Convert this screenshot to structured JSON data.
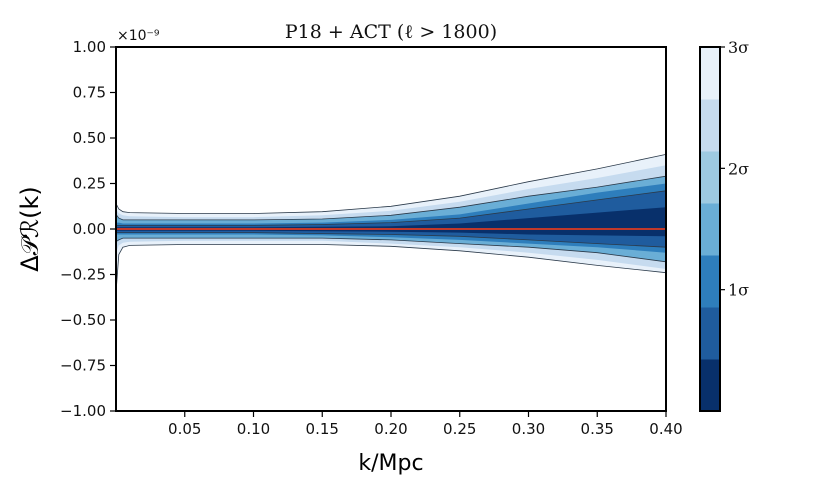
{
  "chart_data": {
    "type": "area",
    "title": "P18 + ACT (ℓ > 1800)",
    "xlabel": "k/Mpc",
    "ylabel": "Δ𝒫ℛ(k)",
    "y_scale_label": "×10⁻⁹",
    "xlim": [
      0.0,
      0.4
    ],
    "ylim": [
      -1.0,
      1.0
    ],
    "x_ticks": [
      "0.05",
      "0.10",
      "0.15",
      "0.20",
      "0.25",
      "0.30",
      "0.35",
      "0.40"
    ],
    "y_ticks": [
      "1.00",
      "0.75",
      "0.50",
      "0.25",
      "0.00",
      "−0.25",
      "−0.50",
      "−0.75",
      "−1.00"
    ],
    "x_tick_values": [
      0.05,
      0.1,
      0.15,
      0.2,
      0.25,
      0.3,
      0.35,
      0.4
    ],
    "y_tick_values": [
      1.0,
      0.75,
      0.5,
      0.25,
      0.0,
      -0.25,
      -0.5,
      -0.75,
      -1.0
    ],
    "x": [
      0.0,
      0.002,
      0.005,
      0.01,
      0.05,
      0.1,
      0.15,
      0.2,
      0.25,
      0.3,
      0.35,
      0.4
    ],
    "bands": [
      {
        "level": "0.5σ",
        "color": "#08306b",
        "upper": [
          0.01,
          0.01,
          0.01,
          0.01,
          0.01,
          0.01,
          0.012,
          0.015,
          0.03,
          0.06,
          0.09,
          0.12
        ],
        "lower": [
          -0.01,
          -0.01,
          -0.01,
          -0.01,
          -0.01,
          -0.01,
          -0.012,
          -0.015,
          -0.02,
          -0.03,
          -0.035,
          -0.04
        ]
      },
      {
        "level": "1σ",
        "color": "#1f5c9e",
        "upper": [
          0.02,
          0.02,
          0.02,
          0.02,
          0.02,
          0.02,
          0.025,
          0.035,
          0.06,
          0.11,
          0.16,
          0.21
        ],
        "lower": [
          -0.02,
          -0.02,
          -0.02,
          -0.02,
          -0.02,
          -0.02,
          -0.025,
          -0.03,
          -0.04,
          -0.06,
          -0.08,
          -0.1
        ]
      },
      {
        "level": "1.5σ",
        "color": "#2e7ebc",
        "upper": [
          0.035,
          0.035,
          0.03,
          0.03,
          0.03,
          0.03,
          0.035,
          0.05,
          0.08,
          0.14,
          0.2,
          0.25
        ],
        "lower": [
          -0.03,
          -0.03,
          -0.03,
          -0.03,
          -0.03,
          -0.03,
          -0.035,
          -0.045,
          -0.06,
          -0.08,
          -0.1,
          -0.13
        ]
      },
      {
        "level": "2σ",
        "color": "#6aaed6",
        "upper": [
          0.08,
          0.06,
          0.05,
          0.05,
          0.05,
          0.05,
          0.055,
          0.075,
          0.12,
          0.18,
          0.23,
          0.29
        ],
        "lower": [
          -0.07,
          -0.06,
          -0.05,
          -0.05,
          -0.05,
          -0.05,
          -0.05,
          -0.06,
          -0.08,
          -0.1,
          -0.13,
          -0.18
        ]
      },
      {
        "level": "2.5σ",
        "color": "#c6dbef",
        "upper": [
          0.11,
          0.085,
          0.075,
          0.07,
          0.065,
          0.065,
          0.075,
          0.1,
          0.15,
          0.22,
          0.28,
          0.35
        ],
        "lower": [
          -0.13,
          -0.09,
          -0.075,
          -0.07,
          -0.065,
          -0.065,
          -0.065,
          -0.08,
          -0.1,
          -0.13,
          -0.17,
          -0.22
        ]
      },
      {
        "level": "3σ",
        "color": "#e8f1fa",
        "upper": [
          0.14,
          0.11,
          0.095,
          0.09,
          0.085,
          0.085,
          0.095,
          0.125,
          0.18,
          0.26,
          0.33,
          0.41
        ],
        "lower": [
          -0.35,
          -0.14,
          -0.1,
          -0.09,
          -0.085,
          -0.085,
          -0.085,
          -0.095,
          -0.12,
          -0.155,
          -0.2,
          -0.24
        ]
      }
    ],
    "median_line": {
      "color": "#c0392b",
      "y": [
        0.0,
        0.0,
        0.0,
        0.0,
        0.0,
        0.0,
        0.0,
        0.0,
        0.0,
        0.0,
        0.0,
        0.0
      ]
    },
    "colorbar": {
      "colors": [
        "#08306b",
        "#1f5c9e",
        "#2e7ebc",
        "#6aaed6",
        "#9ecae1",
        "#c6dbef",
        "#e8f1fa"
      ],
      "ticks": [
        {
          "label": "3σ",
          "value": 3
        },
        {
          "label": "2σ",
          "value": 2
        },
        {
          "label": "1σ",
          "value": 1
        }
      ],
      "range": [
        0,
        3
      ]
    }
  }
}
